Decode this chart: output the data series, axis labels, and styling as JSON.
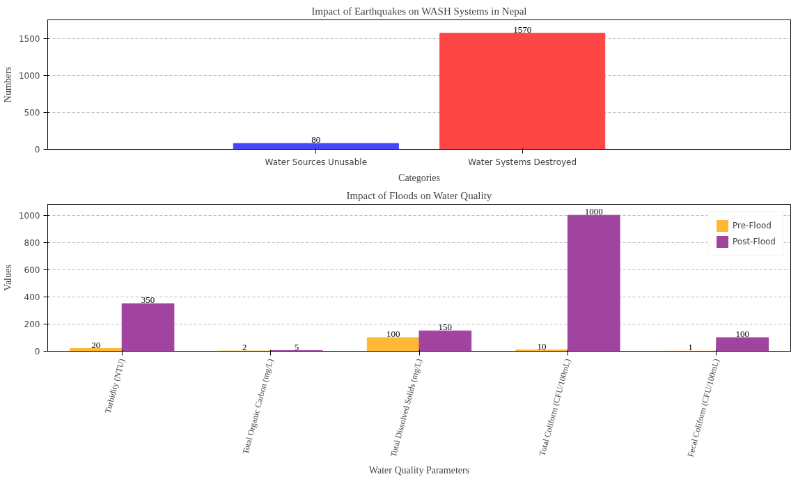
{
  "chart_data": [
    {
      "type": "bar",
      "title": "Impact of Earthquakes on WASH Systems in Nepal",
      "xlabel": "Categories",
      "ylabel": "Numbers",
      "categories": [
        "Water Sources Unusable",
        "Water Systems Destroyed"
      ],
      "values": [
        80,
        1570
      ],
      "colors": [
        "#4646ff",
        "#ff4646"
      ],
      "ylim": [
        0,
        1750
      ],
      "yticks": [
        0,
        500,
        1000,
        1500
      ],
      "grid": "y",
      "data_labels": true
    },
    {
      "type": "bar",
      "title": "Impact of Floods on Water Quality",
      "xlabel": "Water Quality Parameters",
      "ylabel": "Values",
      "categories": [
        "Turbidity (NTU)",
        "Total Organic Carbon (mg/L)",
        "Total Dissolved Solids (mg/L)",
        "Total Coliform (CFU/100mL)",
        "Fecal Coliform (CFU/100mL)"
      ],
      "series": [
        {
          "name": "Pre-Flood",
          "color": "#ffb833",
          "values": [
            20,
            2,
            100,
            10,
            1
          ]
        },
        {
          "name": "Post-Flood",
          "color": "#a044a0",
          "values": [
            350,
            5,
            150,
            1000,
            100
          ]
        }
      ],
      "ylim": [
        0,
        1080
      ],
      "yticks": [
        0,
        200,
        400,
        600,
        800,
        1000
      ],
      "grid": "y",
      "data_labels": true,
      "legend": "top right"
    }
  ]
}
